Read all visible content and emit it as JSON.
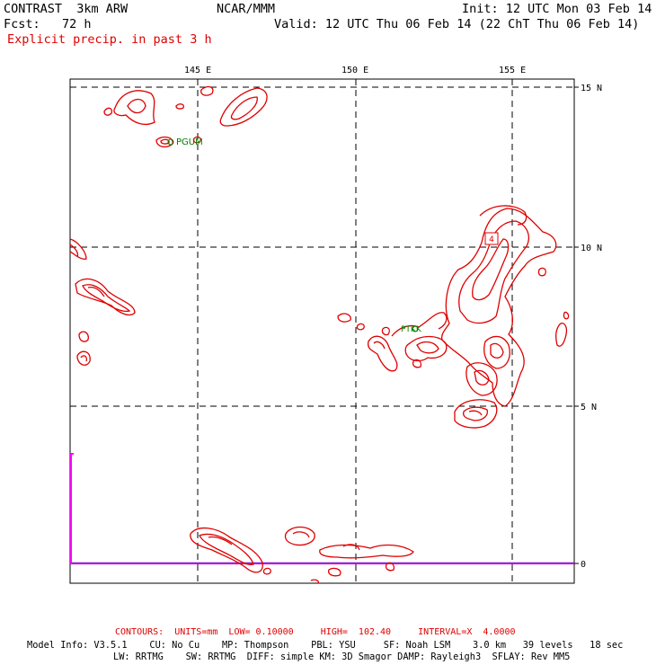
{
  "header": {
    "model_title": "CONTRAST  3km ARW",
    "center": "NCAR/MMM",
    "init": "Init: 12 UTC Mon 03 Feb 14",
    "fcst": "Fcst:   72 h",
    "valid": "Valid: 12 UTC Thu 06 Feb 14 (22 ChT Thu 06 Feb 14)",
    "field_title": "Explicit precip. in past 3 h"
  },
  "map": {
    "lon_labels": [
      "145 E",
      "150 E",
      "155 E"
    ],
    "lat_labels": [
      "15 N",
      "10 N",
      "5 N",
      "0"
    ],
    "station_labels": [
      "PGUM",
      "PTKK"
    ],
    "contour_box_label": "4",
    "colors": {
      "contour": "#e00000",
      "grid": "#000000",
      "station": "#008000",
      "equator": "#cc00cc"
    }
  },
  "footer": {
    "contours_line": "CONTOURS:  UNITS=mm  LOW= 0.10000     HIGH=  102.40     INTERVAL=X  4.0000",
    "model_info_1": "Model Info: V3.5.1    CU: No Cu    MP: Thompson    PBL: YSU     SF: Noah LSM    3.0 km   39 levels   18 sec",
    "model_info_2": "LW: RRTMG    SW: RRTMG  DIFF: simple KM: 3D Smagor DAMP: Rayleigh3  SFLAY: Rev MM5"
  }
}
